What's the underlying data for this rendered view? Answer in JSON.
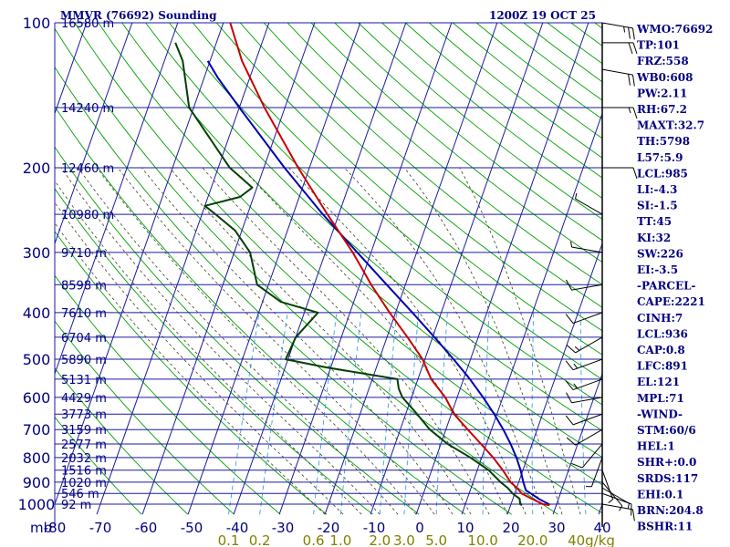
{
  "header": {
    "station_title": "MMVR (76692) Sounding",
    "valid_time": "1200Z 19 OCT 25"
  },
  "colors": {
    "grid": "#1a1aa0",
    "dry_adiabat": "#00a000",
    "moist_adiabat": "#404020",
    "mixing_ratio": "#3aa0e0",
    "temperature": "#c80000",
    "dewpoint": "#004000",
    "parcel": "#0000b0",
    "label": "#000080",
    "mixing_label": "#808000",
    "wind": "#000000"
  },
  "chart_data": {
    "type": "skew-t",
    "units_label": "mb",
    "pressure_levels": [
      100,
      200,
      300,
      400,
      500,
      600,
      700,
      800,
      900,
      1000
    ],
    "height_labels": [
      {
        "p": 100,
        "label": "16580 m"
      },
      {
        "p": 150,
        "label": "14240 m"
      },
      {
        "p": 200,
        "label": "12460 m"
      },
      {
        "p": 250,
        "label": "10980 m"
      },
      {
        "p": 300,
        "label": "9710 m"
      },
      {
        "p": 350,
        "label": "8598 m"
      },
      {
        "p": 400,
        "label": "7610 m"
      },
      {
        "p": 450,
        "label": "6704 m"
      },
      {
        "p": 500,
        "label": "5890 m"
      },
      {
        "p": 550,
        "label": "5131 m"
      },
      {
        "p": 600,
        "label": "4429 m"
      },
      {
        "p": 650,
        "label": "3773 m"
      },
      {
        "p": 700,
        "label": "3159 m"
      },
      {
        "p": 750,
        "label": "2577 m"
      },
      {
        "p": 800,
        "label": "2032 m"
      },
      {
        "p": 850,
        "label": "1516 m"
      },
      {
        "p": 900,
        "label": "1020 m"
      },
      {
        "p": 950,
        "label": "546 m"
      },
      {
        "p": 1000,
        "label": "92 m"
      }
    ],
    "temperature_ticks": [
      "-80",
      "-70",
      "-60",
      "-50",
      "-40",
      "-30",
      "-20",
      "-10",
      "0",
      "10",
      "20",
      "30",
      "40"
    ],
    "temperature_tick_values": [
      -80,
      -70,
      -60,
      -50,
      -40,
      -30,
      -20,
      -10,
      0,
      10,
      20,
      30,
      40
    ],
    "mixing_ratio_labels": [
      {
        "value": 0.1,
        "label": "0.1"
      },
      {
        "value": 0.2,
        "label": "0.2"
      },
      {
        "value": 0.6,
        "label": "0.6"
      },
      {
        "value": 1.0,
        "label": "1.0"
      },
      {
        "value": 2.0,
        "label": "2.0"
      },
      {
        "value": 3.0,
        "label": "3.0"
      },
      {
        "value": 5.0,
        "label": "5.0"
      },
      {
        "value": 10.0,
        "label": "10.0"
      },
      {
        "value": 20.0,
        "label": "20.0"
      },
      {
        "value": 40.0,
        "label": "40g/kg"
      }
    ],
    "xlim": [
      -80,
      40
    ],
    "ylim": [
      1000,
      100
    ],
    "temperature_profile": [
      {
        "p": 1005,
        "t": 28.5
      },
      {
        "p": 1000,
        "t": 27.0
      },
      {
        "p": 975,
        "t": 24.2
      },
      {
        "p": 950,
        "t": 21.5
      },
      {
        "p": 925,
        "t": 20.0
      },
      {
        "p": 900,
        "t": 18.2
      },
      {
        "p": 850,
        "t": 15.6
      },
      {
        "p": 800,
        "t": 12.5
      },
      {
        "p": 750,
        "t": 8.8
      },
      {
        "p": 700,
        "t": 4.8
      },
      {
        "p": 650,
        "t": 0.6
      },
      {
        "p": 600,
        "t": -2.6
      },
      {
        "p": 550,
        "t": -7.1
      },
      {
        "p": 500,
        "t": -10.5
      },
      {
        "p": 450,
        "t": -15.5
      },
      {
        "p": 400,
        "t": -21.3
      },
      {
        "p": 350,
        "t": -27.5
      },
      {
        "p": 300,
        "t": -34.0
      },
      {
        "p": 250,
        "t": -42.5
      },
      {
        "p": 200,
        "t": -52.5
      },
      {
        "p": 150,
        "t": -64.5
      },
      {
        "p": 120,
        "t": -73.0
      },
      {
        "p": 100,
        "t": -78.5
      }
    ],
    "dewpoint_profile": [
      {
        "p": 1005,
        "t": 22.5
      },
      {
        "p": 1000,
        "t": 22.0
      },
      {
        "p": 975,
        "t": 21.5
      },
      {
        "p": 950,
        "t": 19.5
      },
      {
        "p": 925,
        "t": 18.0
      },
      {
        "p": 900,
        "t": 16.0
      },
      {
        "p": 850,
        "t": 12.5
      },
      {
        "p": 800,
        "t": 7.5
      },
      {
        "p": 750,
        "t": 1.5
      },
      {
        "p": 700,
        "t": -3.5
      },
      {
        "p": 650,
        "t": -7.5
      },
      {
        "p": 600,
        "t": -12.0
      },
      {
        "p": 575,
        "t": -13.5
      },
      {
        "p": 550,
        "t": -14.5
      },
      {
        "p": 520,
        "t": -31.0
      },
      {
        "p": 500,
        "t": -40.5
      },
      {
        "p": 450,
        "t": -40.0
      },
      {
        "p": 400,
        "t": -37.0
      },
      {
        "p": 380,
        "t": -46.0
      },
      {
        "p": 350,
        "t": -52.5
      },
      {
        "p": 300,
        "t": -56.5
      },
      {
        "p": 270,
        "t": -61.5
      },
      {
        "p": 250,
        "t": -67.0
      },
      {
        "p": 240,
        "t": -70.0
      },
      {
        "p": 230,
        "t": -63.0
      },
      {
        "p": 220,
        "t": -61.0
      },
      {
        "p": 200,
        "t": -67.5
      },
      {
        "p": 150,
        "t": -81.0
      },
      {
        "p": 120,
        "t": -86.0
      },
      {
        "p": 110,
        "t": -89.0
      }
    ],
    "parcel_profile": [
      {
        "p": 1005,
        "t": 28.5
      },
      {
        "p": 1000,
        "t": 28.3
      },
      {
        "p": 975,
        "t": 25.7
      },
      {
        "p": 950,
        "t": 23.5
      },
      {
        "p": 936,
        "t": 22.2
      },
      {
        "p": 900,
        "t": 21.0
      },
      {
        "p": 850,
        "t": 19.5
      },
      {
        "p": 800,
        "t": 17.6
      },
      {
        "p": 750,
        "t": 15.3
      },
      {
        "p": 700,
        "t": 12.6
      },
      {
        "p": 650,
        "t": 9.4
      },
      {
        "p": 600,
        "t": 5.7
      },
      {
        "p": 550,
        "t": 1.4
      },
      {
        "p": 500,
        "t": -3.7
      },
      {
        "p": 450,
        "t": -9.6
      },
      {
        "p": 400,
        "t": -16.3
      },
      {
        "p": 350,
        "t": -24.1
      },
      {
        "p": 300,
        "t": -33.0
      },
      {
        "p": 250,
        "t": -43.5
      },
      {
        "p": 200,
        "t": -55.5
      },
      {
        "p": 150,
        "t": -70.0
      },
      {
        "p": 130,
        "t": -77.0
      },
      {
        "p": 120,
        "t": -80.5
      }
    ],
    "wind_profile": [
      {
        "p": 1000,
        "dir": 100,
        "spd": 10
      },
      {
        "p": 950,
        "dir": 110,
        "spd": 10
      },
      {
        "p": 925,
        "dir": 120,
        "spd": 5
      },
      {
        "p": 900,
        "dir": 140,
        "spd": 5
      },
      {
        "p": 850,
        "dir": 160,
        "spd": 5
      },
      {
        "p": 800,
        "dir": 200,
        "spd": 5
      },
      {
        "p": 750,
        "dir": 220,
        "spd": 10
      },
      {
        "p": 700,
        "dir": 240,
        "spd": 10
      },
      {
        "p": 650,
        "dir": 250,
        "spd": 10
      },
      {
        "p": 600,
        "dir": 260,
        "spd": 10
      },
      {
        "p": 550,
        "dir": 250,
        "spd": 15
      },
      {
        "p": 500,
        "dir": 250,
        "spd": 15
      },
      {
        "p": 450,
        "dir": 240,
        "spd": 15
      },
      {
        "p": 400,
        "dir": 250,
        "spd": 10
      },
      {
        "p": 350,
        "dir": 260,
        "spd": 10
      },
      {
        "p": 300,
        "dir": 280,
        "spd": 5
      },
      {
        "p": 250,
        "dir": 300,
        "spd": 5
      },
      {
        "p": 200,
        "dir": 90,
        "spd": 10
      },
      {
        "p": 150,
        "dir": 90,
        "spd": 15
      },
      {
        "p": 125,
        "dir": 100,
        "spd": 20
      },
      {
        "p": 110,
        "dir": 90,
        "spd": 20
      },
      {
        "p": 100,
        "dir": 100,
        "spd": 25
      }
    ]
  },
  "indices": [
    "WMO:76692",
    "TP:101",
    "FRZ:558",
    "WB0:608",
    "PW:2.11",
    "RH:67.2",
    "MAXT:32.7",
    "TH:5798",
    "L57:5.9",
    "LCL:985",
    "LI:-4.3",
    "SI:-1.5",
    "TT:45",
    "KI:32",
    "SW:226",
    "EI:-3.5",
    "-PARCEL-",
    "CAPE:2221",
    "CINH:7",
    "LCL:936",
    "CAP:0.8",
    "LFC:891",
    "EL:121",
    "MPL:71",
    "-WIND-",
    "STM:60/6",
    "HEL:1",
    "SHR+:0.0",
    "SRDS:117",
    "EHI:0.1",
    "BRN:204.8",
    "BSHR:11"
  ]
}
